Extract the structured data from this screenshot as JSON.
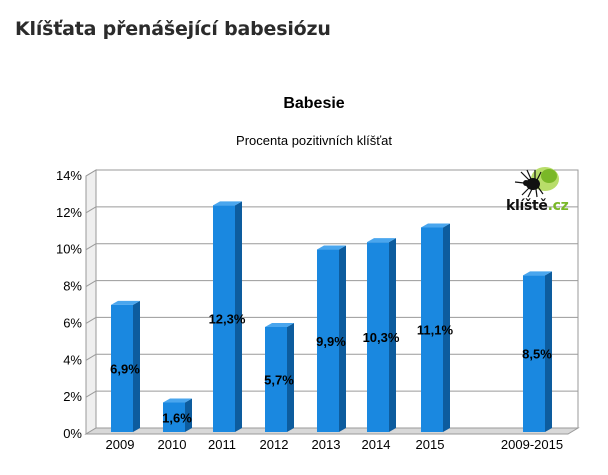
{
  "page": {
    "heading": "Klíšťata přenášející babesiózu"
  },
  "logo": {
    "text_main": "klíště",
    "text_dot": ".cz",
    "icon": "tick-icon",
    "accent_color": "#7ab828"
  },
  "chart_data": {
    "type": "bar",
    "title": "Babesie",
    "subtitle": "Procenta pozitivních klíšťat",
    "categories": [
      "2009",
      "2010",
      "2011",
      "2012",
      "2013",
      "2014",
      "2015",
      "2009-2015"
    ],
    "values": [
      6.9,
      1.6,
      12.3,
      5.7,
      9.9,
      10.3,
      11.1,
      8.5
    ],
    "value_labels": [
      "6,9%",
      "1,6%",
      "12,3%",
      "5,7%",
      "9,9%",
      "10,3%",
      "11,1%",
      "8,5%"
    ],
    "y_ticks": [
      "0%",
      "2%",
      "4%",
      "6%",
      "8%",
      "10%",
      "12%",
      "14%"
    ],
    "ylim": [
      0,
      14
    ],
    "grid": true,
    "bar_color": "#1a88e0",
    "bar_side_color": "#0d5c9e",
    "bar_top_color": "#4aa6ee"
  }
}
